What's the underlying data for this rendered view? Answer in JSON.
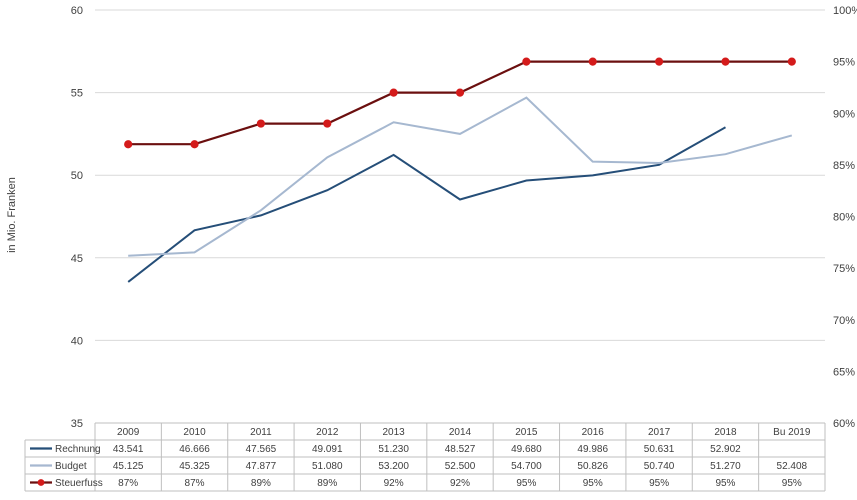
{
  "chart_data": {
    "type": "line",
    "ylabel": "in Mio. Franken",
    "categories": [
      "2009",
      "2010",
      "2011",
      "2012",
      "2013",
      "2014",
      "2015",
      "2016",
      "2017",
      "2018",
      "Bu 2019"
    ],
    "y_left": {
      "min": 35,
      "max": 60,
      "step": 5,
      "ticks": [
        "35",
        "40",
        "45",
        "50",
        "55",
        "60"
      ]
    },
    "y_right": {
      "min": 60,
      "max": 100,
      "step": 5,
      "ticks": [
        "60%",
        "65%",
        "70%",
        "75%",
        "80%",
        "85%",
        "90%",
        "95%",
        "100%"
      ]
    },
    "grid": true,
    "legend": "data-table",
    "series": [
      {
        "name": "Rechnung",
        "axis": "left",
        "color": "#254E78",
        "values": [
          43.541,
          46.666,
          47.565,
          49.091,
          51.23,
          48.527,
          49.68,
          49.986,
          50.631,
          52.902,
          null
        ],
        "labels": [
          "43.541",
          "46.666",
          "47.565",
          "49.091",
          "51.230",
          "48.527",
          "49.680",
          "49.986",
          "50.631",
          "52.902",
          ""
        ]
      },
      {
        "name": "Budget",
        "axis": "left",
        "color": "#A6B8D0",
        "values": [
          45.125,
          45.325,
          47.877,
          51.08,
          53.2,
          52.5,
          54.7,
          50.826,
          50.74,
          51.27,
          52.408
        ],
        "labels": [
          "45.125",
          "45.325",
          "47.877",
          "51.080",
          "53.200",
          "52.500",
          "54.700",
          "50.826",
          "50.740",
          "51.270",
          "52.408"
        ]
      },
      {
        "name": "Steuerfuss",
        "axis": "right",
        "color": "#6B0F0F",
        "marker_color": "#D41B1B",
        "values": [
          87,
          87,
          89,
          89,
          92,
          92,
          95,
          95,
          95,
          95,
          95
        ],
        "labels": [
          "87%",
          "87%",
          "89%",
          "89%",
          "92%",
          "92%",
          "95%",
          "95%",
          "95%",
          "95%",
          "95%"
        ]
      }
    ]
  }
}
